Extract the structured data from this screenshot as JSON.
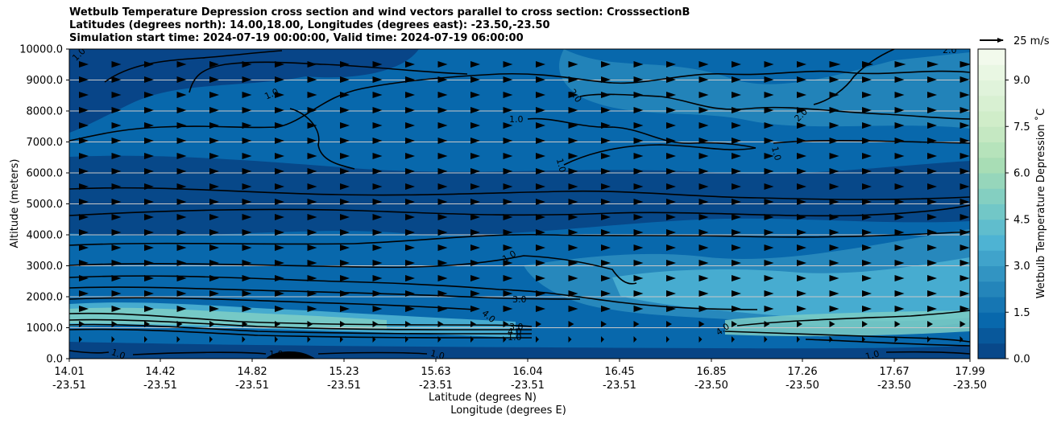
{
  "chart_data": {
    "type": "heatmap",
    "title_lines": [
      "Wetbulb Temperature Depression cross section and wind vectors parallel to cross section: CrosssectionB",
      "Latitudes (degrees north): 14.00,18.00, Longitudes (degrees east): -23.50,-23.50",
      "Simulation start time: 2024-07-19 00:00:00, Valid time: 2024-07-19 06:00:00"
    ],
    "ylabel": "Altitude (meters)",
    "xlabel_lines": [
      "Latitude (degrees N)",
      "Longitude (degrees E)"
    ],
    "ylim": [
      0,
      10000
    ],
    "y_ticks": [
      "0.0",
      "1000.0",
      "2000.0",
      "3000.0",
      "4000.0",
      "5000.0",
      "6000.0",
      "7000.0",
      "8000.0",
      "9000.0",
      "10000.0"
    ],
    "x_ticks": [
      {
        "lat": "14.01",
        "lon": "-23.51"
      },
      {
        "lat": "14.42",
        "lon": "-23.51"
      },
      {
        "lat": "14.82",
        "lon": "-23.51"
      },
      {
        "lat": "15.23",
        "lon": "-23.51"
      },
      {
        "lat": "15.63",
        "lon": "-23.51"
      },
      {
        "lat": "16.04",
        "lon": "-23.51"
      },
      {
        "lat": "16.45",
        "lon": "-23.51"
      },
      {
        "lat": "16.85",
        "lon": "-23.50"
      },
      {
        "lat": "17.26",
        "lon": "-23.50"
      },
      {
        "lat": "17.67",
        "lon": "-23.50"
      },
      {
        "lat": "17.99",
        "lon": "-23.50"
      }
    ],
    "colorbar": {
      "label": "Wetbulb Temperature Depression ˚C",
      "ticks": [
        "0.0",
        "1.5",
        "3.0",
        "4.5",
        "6.0",
        "7.5",
        "9.0"
      ],
      "range": [
        0,
        10
      ],
      "colormap": "GnBu_r",
      "colors": [
        "#084081",
        "#0868ac",
        "#2b8cbe",
        "#4eb3d3",
        "#7bccc4",
        "#a8ddb5",
        "#ccebc5",
        "#e0f3db",
        "#f7fcf0"
      ]
    },
    "wind_key": {
      "label": "25 m/s"
    },
    "grid": "horizontal",
    "contour_labels": [
      "1.0",
      "2.0",
      "3.0",
      "4.0"
    ]
  }
}
